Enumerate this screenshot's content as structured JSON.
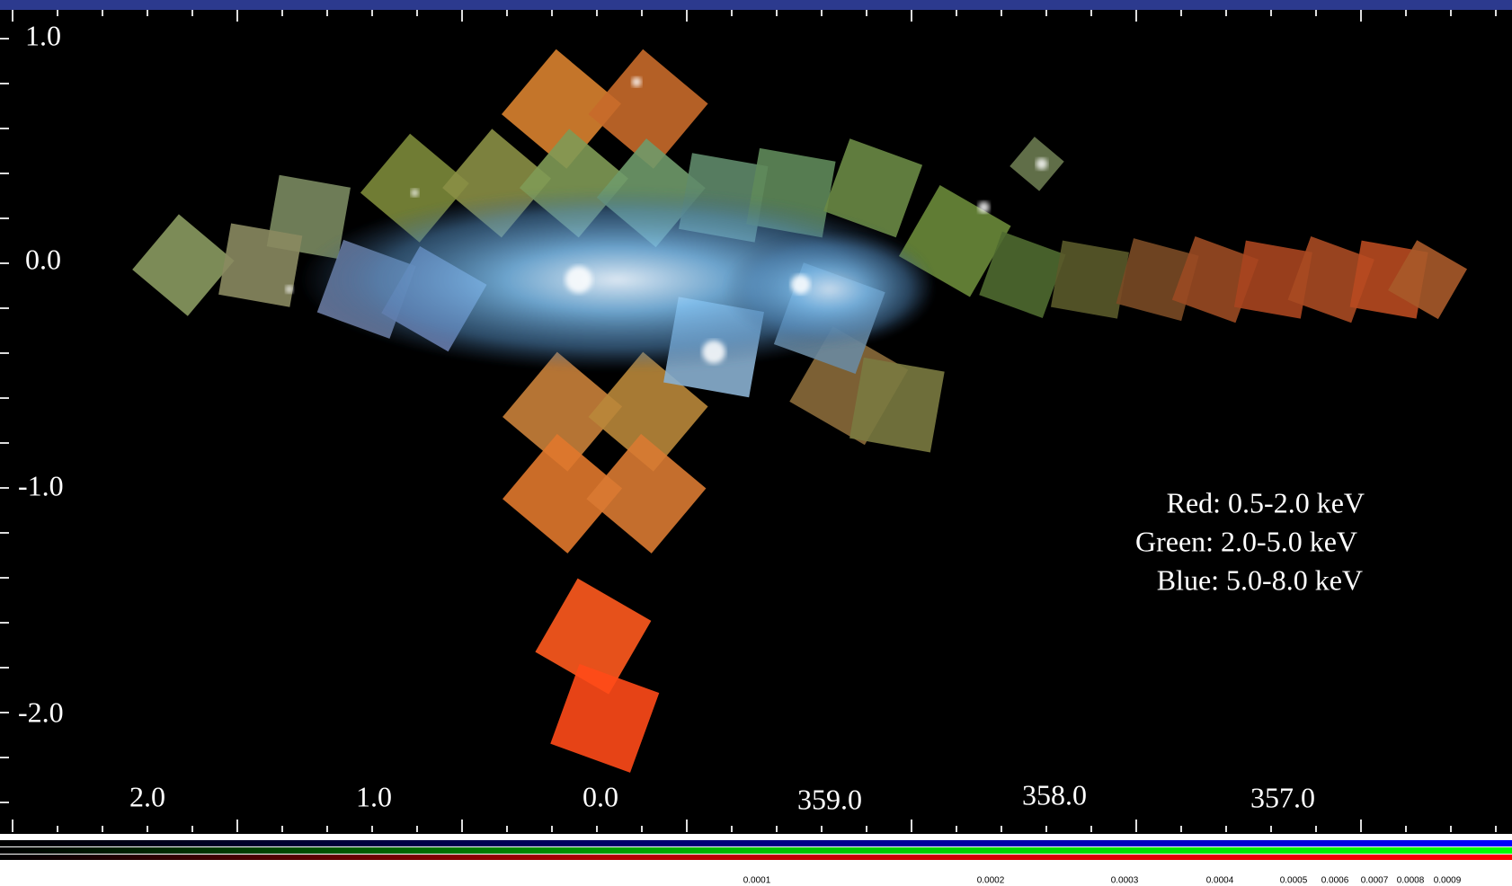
{
  "axes": {
    "y_labels": [
      "1.0",
      "0.0",
      "-1.0",
      "-2.0"
    ],
    "x_labels": [
      "2.0",
      "1.0",
      "0.0",
      "359.0",
      "358.0",
      "357.0"
    ]
  },
  "legend": [
    "Red: 0.5-2.0 keV",
    "Green: 2.0-5.0 keV",
    "Blue: 5.0-8.0 keV"
  ],
  "colorbar": {
    "labels": [
      "0.0001",
      "0.0002",
      "0.0003",
      "0.0004",
      "0.0005",
      "0.0006",
      "0.0007",
      "0.0008",
      "0.0009"
    ]
  }
}
